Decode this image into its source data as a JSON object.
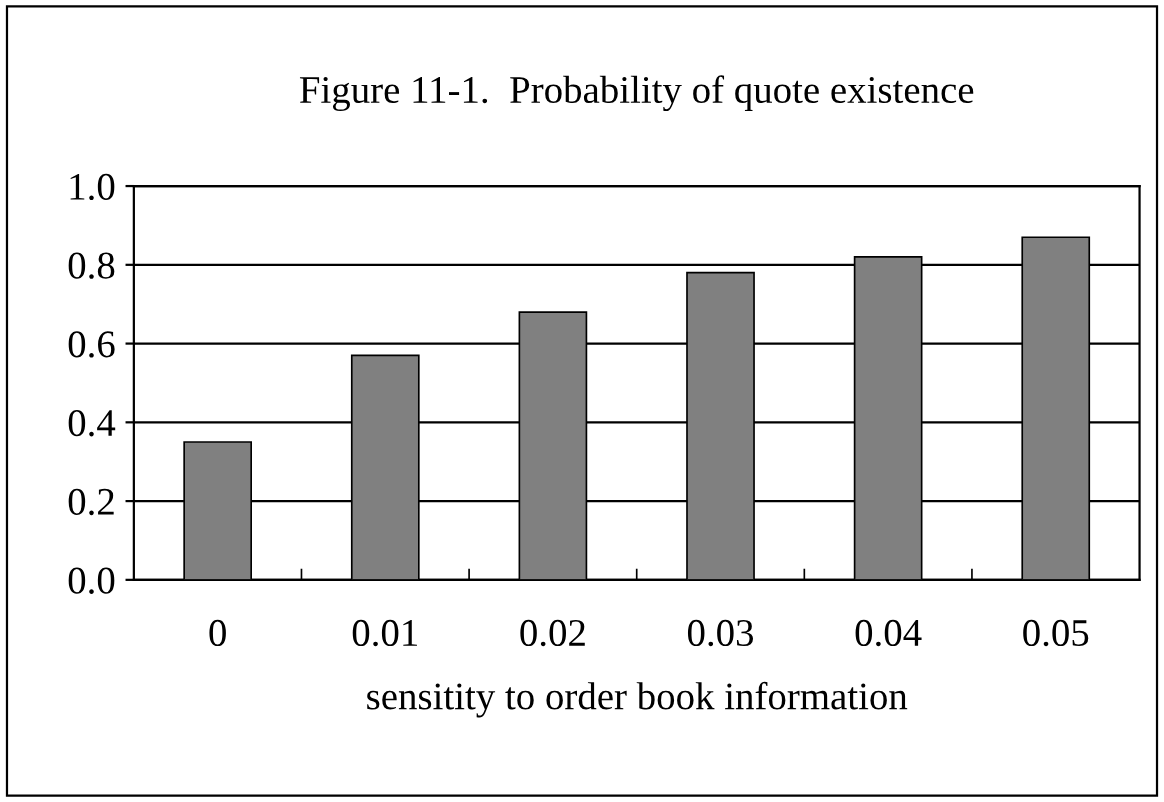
{
  "chart_data": {
    "type": "bar",
    "title": "Figure 11-1.  Probability of quote existence",
    "xlabel": "sensitity to order book information",
    "categories": [
      "0",
      "0.01",
      "0.02",
      "0.03",
      "0.04",
      "0.05"
    ],
    "values": [
      0.35,
      0.57,
      0.68,
      0.78,
      0.82,
      0.87
    ],
    "color": "#808080",
    "ylim": [
      0,
      1.0
    ],
    "yticks": [
      {
        "value": 0,
        "label": "0.0"
      },
      {
        "value": 0.2,
        "label": "0.2"
      },
      {
        "value": 0.4,
        "label": "0.4"
      },
      {
        "value": 0.6,
        "label": "0.6"
      },
      {
        "value": 0.8,
        "label": "0.8"
      },
      {
        "value": 1.0,
        "label": "1.0"
      }
    ],
    "grid": "y",
    "legend": false
  }
}
